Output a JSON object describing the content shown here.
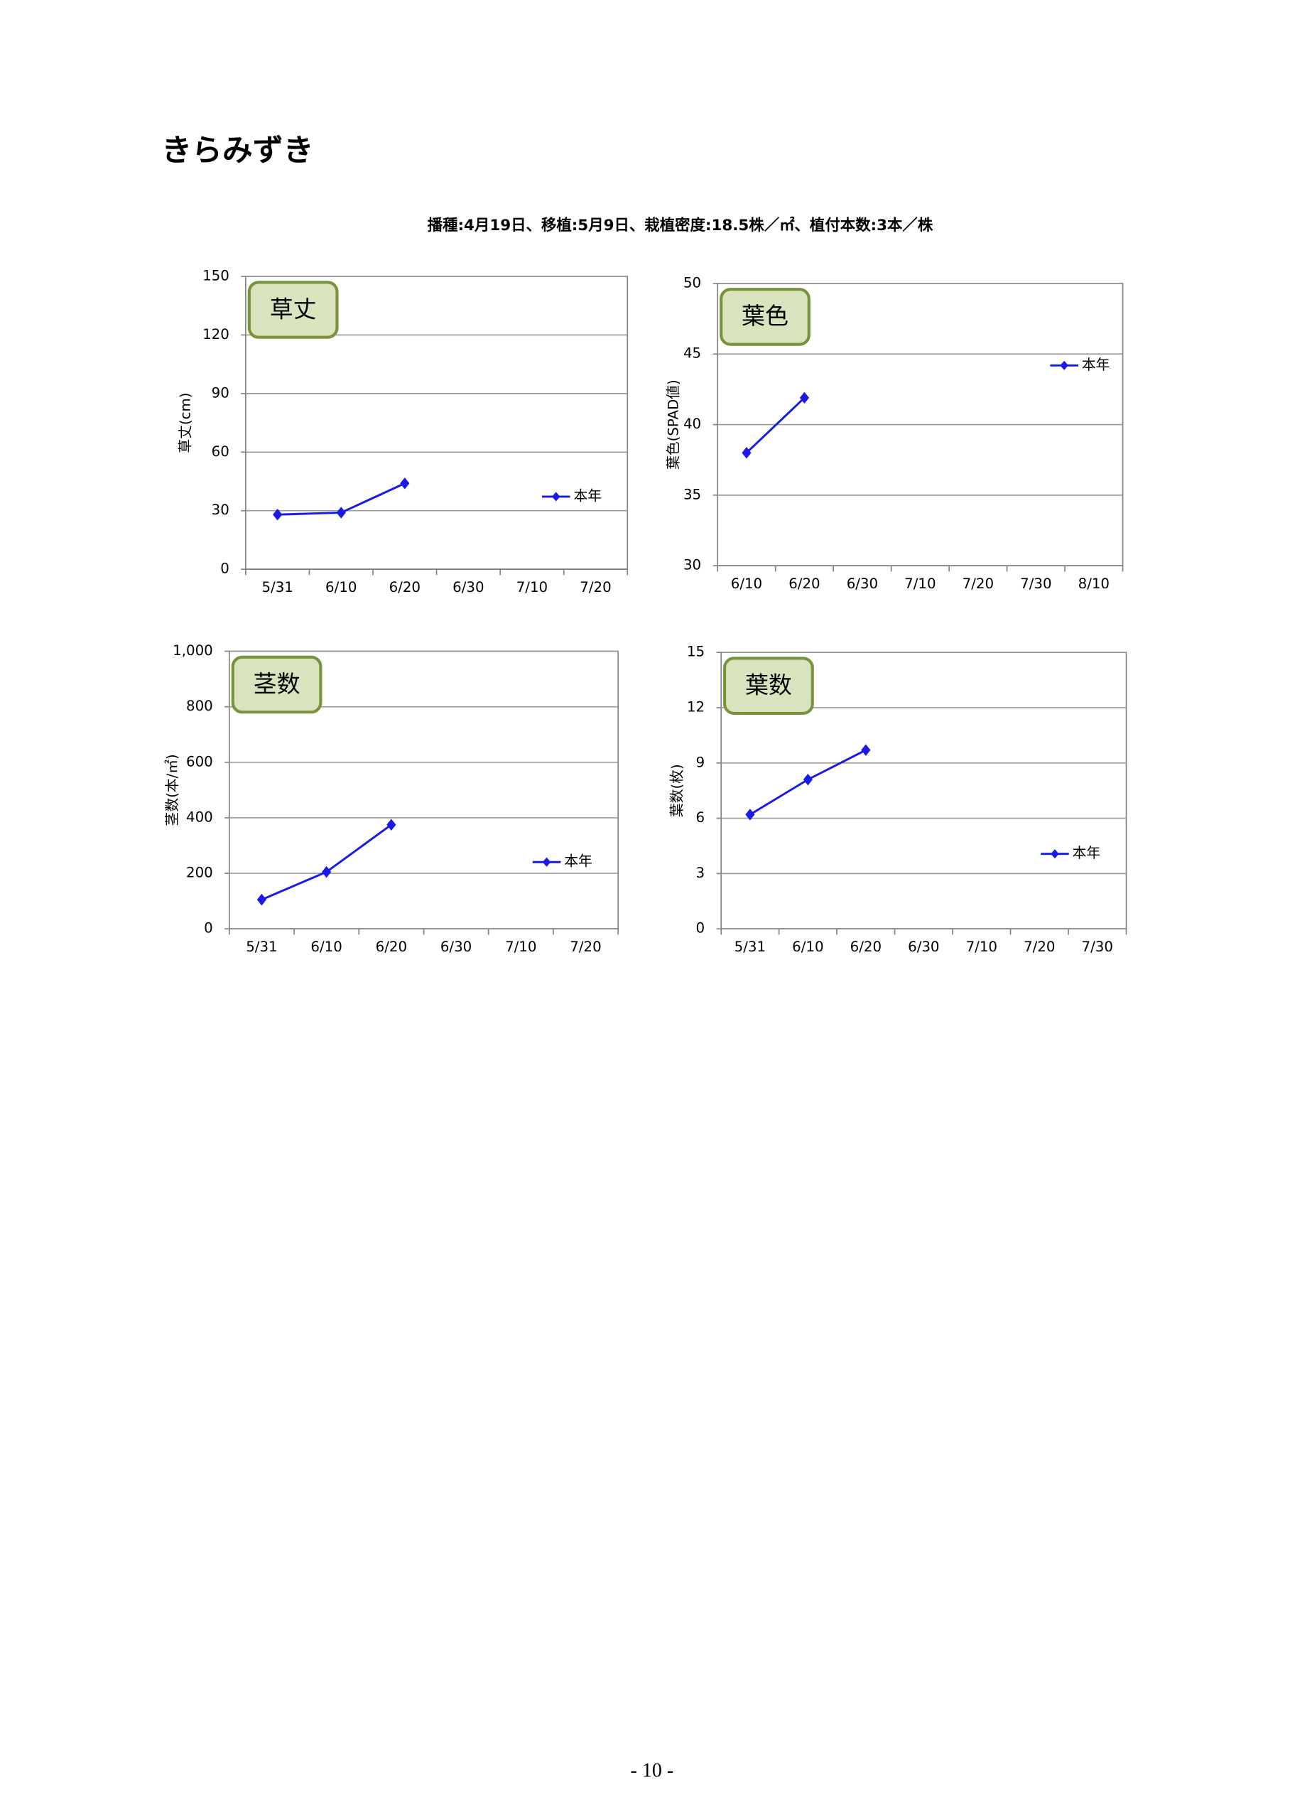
{
  "title": "きらみずき",
  "subtitle": "播種:4月19日、移植:5月9日、栽植密度:18.5株／㎡、植付本数:3本／株",
  "page_number": "- 10 -",
  "chart_data": [
    {
      "type": "line",
      "badge": "草丈",
      "ylabel": "草丈(cm)",
      "categories": [
        "5/31",
        "6/10",
        "6/20",
        "6/30",
        "7/10",
        "7/20"
      ],
      "series": [
        {
          "name": "本年",
          "color": "#1a1ae6",
          "values": [
            28,
            29,
            44,
            null,
            null,
            null
          ]
        }
      ],
      "ylim": [
        0,
        150
      ],
      "yticks": [
        0,
        30,
        60,
        90,
        120,
        150
      ],
      "grid": true,
      "legend": "right"
    },
    {
      "type": "line",
      "badge": "葉色",
      "ylabel": "葉色(SPAD値)",
      "categories": [
        "6/10",
        "6/20",
        "6/30",
        "7/10",
        "7/20",
        "7/30",
        "8/10"
      ],
      "series": [
        {
          "name": "本年",
          "color": "#1a1ae6",
          "values": [
            38,
            41.9,
            null,
            null,
            null,
            null,
            null
          ]
        }
      ],
      "ylim": [
        30,
        50
      ],
      "yticks": [
        30,
        35,
        40,
        45,
        50
      ],
      "grid": true,
      "legend": "top-right"
    },
    {
      "type": "line",
      "badge": "茎数",
      "ylabel": "茎数(本/㎡)",
      "categories": [
        "5/31",
        "6/10",
        "6/20",
        "6/30",
        "7/10",
        "7/20"
      ],
      "series": [
        {
          "name": "本年",
          "color": "#1a1ae6",
          "values": [
            105,
            205,
            375,
            null,
            null,
            null
          ]
        }
      ],
      "ylim": [
        0,
        1000
      ],
      "yticks": [
        0,
        200,
        400,
        600,
        800,
        {
          "value": 1000,
          "label": "1,000"
        }
      ],
      "grid": true,
      "legend": "right"
    },
    {
      "type": "line",
      "badge": "葉数",
      "ylabel": "葉数(枚)",
      "categories": [
        "5/31",
        "6/10",
        "6/20",
        "6/30",
        "7/10",
        "7/20",
        "7/30"
      ],
      "series": [
        {
          "name": "本年",
          "color": "#1a1ae6",
          "values": [
            6.2,
            8.1,
            9.7,
            null,
            null,
            null,
            null
          ]
        }
      ],
      "ylim": [
        0,
        15
      ],
      "yticks": [
        0,
        3,
        6,
        9,
        12,
        15
      ],
      "grid": true,
      "legend": "right"
    }
  ]
}
